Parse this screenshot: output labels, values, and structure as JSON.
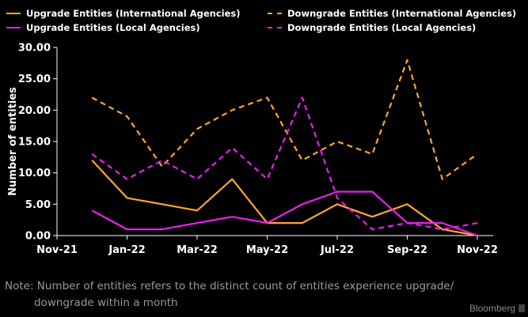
{
  "chart_data": {
    "type": "line",
    "title": "",
    "xlabel": "",
    "ylabel": "Number of entities",
    "ylim": [
      0,
      30
    ],
    "yticks": [
      "0.00",
      "5.00",
      "10.00",
      "15.00",
      "20.00",
      "25.00",
      "30.00"
    ],
    "xlim": [
      "2021-11",
      "2022-11"
    ],
    "xticks": [
      "Nov-21",
      "Jan-22",
      "Mar-22",
      "May-22",
      "Jul-22",
      "Sep-22",
      "Nov-22"
    ],
    "x": [
      "2021-12",
      "2022-01",
      "2022-02",
      "2022-03",
      "2022-04",
      "2022-05",
      "2022-06",
      "2022-07",
      "2022-08",
      "2022-09",
      "2022-10",
      "2022-11"
    ],
    "series": [
      {
        "name": "Upgrade Entities (International Agencies)",
        "color": "#ffa630",
        "style": "solid",
        "values": [
          12,
          6,
          5,
          4,
          9,
          2,
          2,
          5,
          3,
          5,
          1,
          0
        ]
      },
      {
        "name": "Downgrade Entities (International Agencies)",
        "color": "#ffa630",
        "style": "dashed",
        "values": [
          22,
          19,
          11,
          17,
          20,
          22,
          12,
          15,
          13,
          28,
          9,
          13
        ]
      },
      {
        "name": "Upgrade Entities (Local Agencies)",
        "color": "#ee1ef0",
        "style": "solid",
        "values": [
          4,
          1,
          1,
          2,
          3,
          2,
          5,
          7,
          7,
          2,
          2,
          0
        ]
      },
      {
        "name": "Downgrade Entities (Local Agencies)",
        "color": "#ee1ef0",
        "style": "dashed",
        "values": [
          13,
          9,
          12,
          9,
          14,
          9,
          22,
          6,
          1,
          2,
          1,
          2
        ]
      }
    ],
    "legend_position": "top",
    "grid": false
  },
  "note": {
    "line1": "Note: Number of entities refers to the distinct count of entities experience upgrade/",
    "line2": "downgrade within a month"
  },
  "brand": "Bloomberg"
}
